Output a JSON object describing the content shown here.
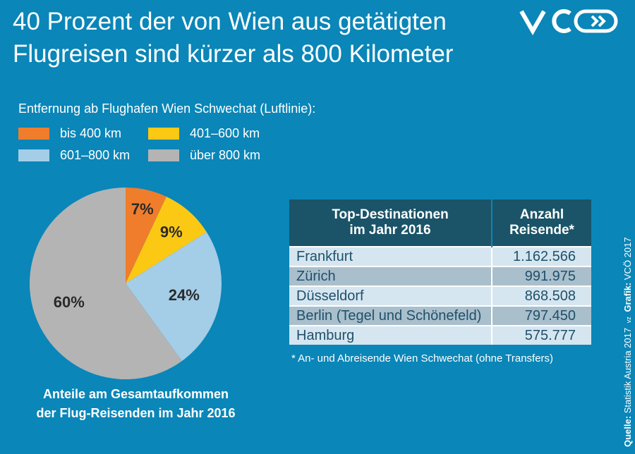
{
  "header": {
    "title_line1": "40 Prozent der von Wien aus getätigten",
    "title_line2": "Flugreisen sind kürzer als 800 Kilometer"
  },
  "logo": {
    "text": "VCÖ",
    "icon": "vco-logo"
  },
  "legend": {
    "title": "Entfernung ab Flughafen Wien Schwechat (Luftlinie):",
    "items": [
      {
        "label": "bis 400 km",
        "color": "#ef7d2c"
      },
      {
        "label": "401–600 km",
        "color": "#fbc913"
      },
      {
        "label": "601–800 km",
        "color": "#a4cde7"
      },
      {
        "label": "über 800 km",
        "color": "#b4b4b4"
      }
    ]
  },
  "chart_data": {
    "type": "pie",
    "categories": [
      "bis 400 km",
      "401–600 km",
      "601–800 km",
      "über 800 km"
    ],
    "values": [
      7,
      9,
      24,
      60
    ],
    "labels": [
      "7%",
      "9%",
      "24%",
      "60%"
    ],
    "colors": [
      "#ef7d2c",
      "#fbc913",
      "#a4cde7",
      "#b4b4b4"
    ],
    "caption_line1": "Anteile am Gesamtaufkommen",
    "caption_line2": "der Flug-Reisenden im Jahr 2016"
  },
  "table": {
    "header_col1_line1": "Top-Destinationen",
    "header_col1_line2": "im Jahr 2016",
    "header_col2_line1": "Anzahl",
    "header_col2_line2": "Reisende*",
    "rows": [
      {
        "name": "Frankfurt",
        "value": "1.162.566"
      },
      {
        "name": "Zürich",
        "value": "991.975"
      },
      {
        "name": "Düsseldorf",
        "value": "868.508"
      },
      {
        "name": "Berlin (Tegel und Schönefeld)",
        "value": "797.450"
      },
      {
        "name": "Hamburg",
        "value": "575.777"
      }
    ],
    "footnote": "* An- und Abreisende Wien Schwechat (ohne Transfers)"
  },
  "source": {
    "label_quelle": "Quelle:",
    "quelle_text": "Statistik Austria 2017",
    "abbr": "vz",
    "label_grafik": "Grafik:",
    "grafik_text": "VCÖ 2017"
  }
}
